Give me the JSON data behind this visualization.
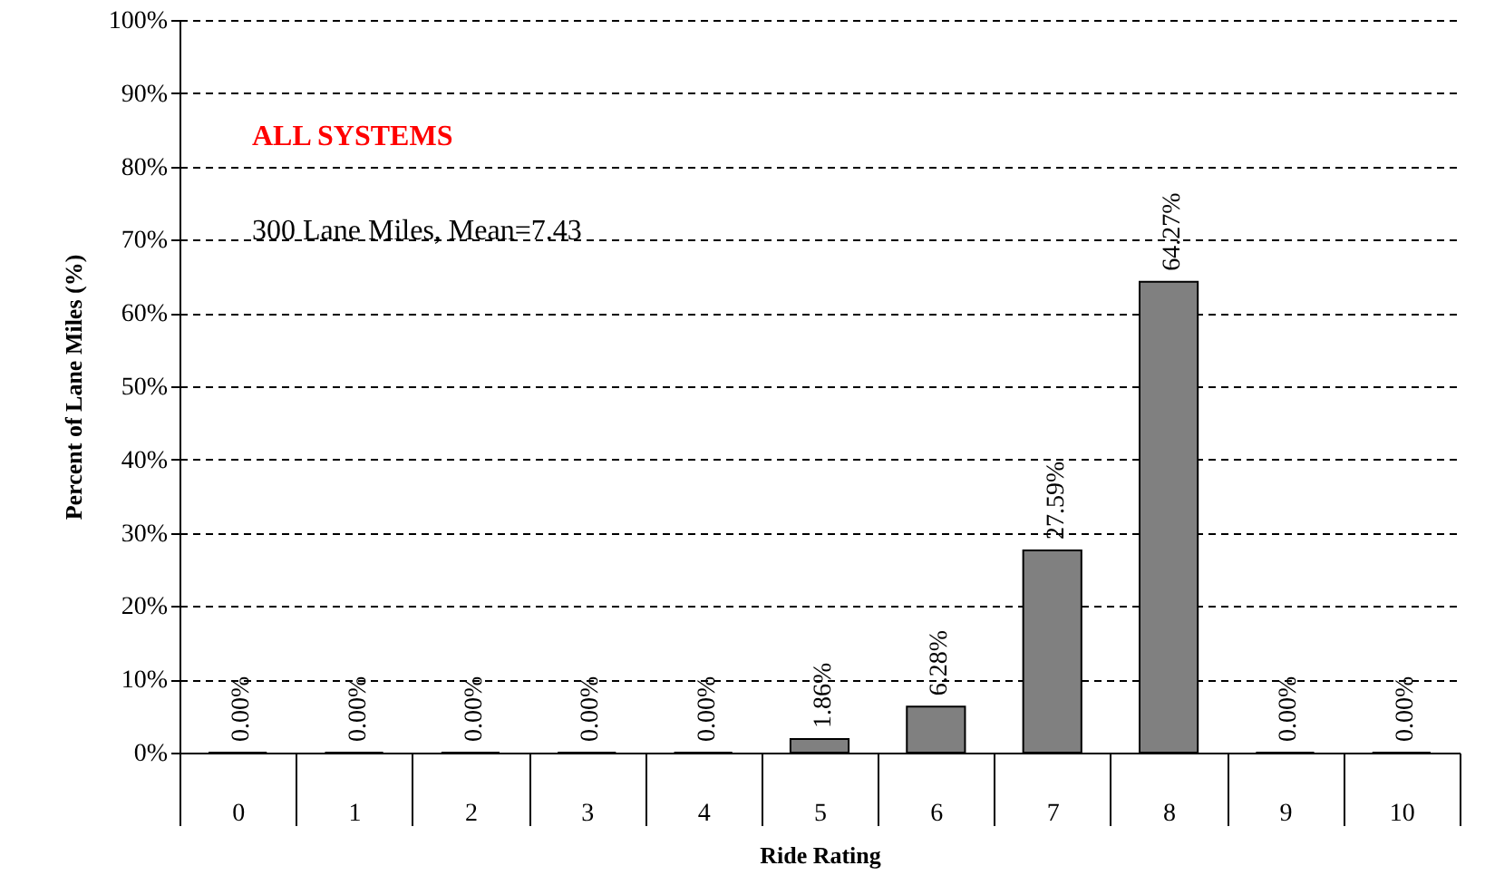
{
  "chart_data": {
    "type": "bar",
    "xlabel": "Ride Rating",
    "ylabel": "Percent of Lane Miles (%)",
    "annotations": [
      "ALL SYSTEMS",
      "300 Lane Miles, Mean=7.43"
    ],
    "categories": [
      "0",
      "1",
      "2",
      "3",
      "4",
      "5",
      "6",
      "7",
      "8",
      "9",
      "10"
    ],
    "values": [
      0,
      0,
      0,
      0,
      0,
      1.86,
      6.28,
      27.59,
      64.27,
      0,
      0
    ],
    "value_labels": [
      "0.00%",
      "0.00%",
      "0.00%",
      "0.00%",
      "0.00%",
      "1.86%",
      "6.28%",
      "27.59%",
      "64.27%",
      "0.00%",
      "0.00%"
    ],
    "color": "#808080",
    "ylim": [
      0,
      100
    ],
    "yticks": [
      {
        "value": 0,
        "label": "0%"
      },
      {
        "value": 10,
        "label": "10%"
      },
      {
        "value": 20,
        "label": "20%"
      },
      {
        "value": 30,
        "label": "30%"
      },
      {
        "value": 40,
        "label": "40%"
      },
      {
        "value": 50,
        "label": "50%"
      },
      {
        "value": 60,
        "label": "60%"
      },
      {
        "value": 70,
        "label": "70%"
      },
      {
        "value": 80,
        "label": "80%"
      },
      {
        "value": 90,
        "label": "90%"
      },
      {
        "value": 100,
        "label": "100%"
      }
    ],
    "grid": "y"
  }
}
